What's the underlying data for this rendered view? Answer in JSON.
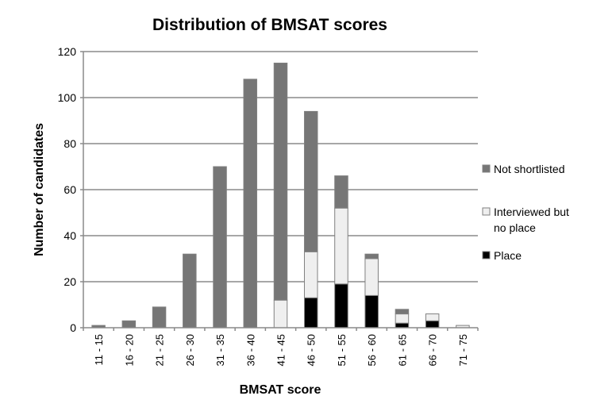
{
  "chart_data": {
    "type": "bar",
    "stacked": true,
    "title": "Distribution of BMSAT scores",
    "xlabel": "BMSAT score",
    "ylabel": "Number of candidates",
    "ylim": [
      0,
      120
    ],
    "yticks": [
      0,
      20,
      40,
      60,
      80,
      100,
      120
    ],
    "grid": true,
    "legend_position": "right",
    "categories": [
      "11 - 15",
      "16 - 20",
      "21 - 25",
      "26 - 30",
      "31 - 35",
      "36 - 40",
      "41 - 45",
      "46 - 50",
      "51 - 55",
      "56 - 60",
      "61 - 65",
      "66 - 70",
      "71 - 75"
    ],
    "series": [
      {
        "name": "Place",
        "color": "#000000",
        "values": [
          0,
          0,
          0,
          0,
          0,
          0,
          0,
          13,
          19,
          14,
          2,
          3,
          0
        ]
      },
      {
        "name": "Interviewed but no place",
        "color": "#efefef",
        "values": [
          0,
          0,
          0,
          0,
          0,
          0,
          12,
          20,
          33,
          16,
          4,
          3,
          1
        ]
      },
      {
        "name": "Not shortlisted",
        "color": "#767676",
        "values": [
          1,
          3,
          9,
          32,
          70,
          108,
          103,
          61,
          14,
          2,
          2,
          0,
          0
        ]
      }
    ]
  }
}
